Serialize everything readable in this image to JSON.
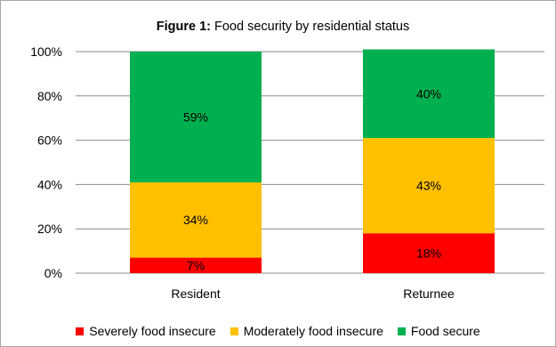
{
  "chart_data": {
    "type": "bar",
    "stacked": true,
    "title_prefix": "Figure 1:",
    "title_rest": " Food security by residential status",
    "categories": [
      "Resident",
      "Returnee"
    ],
    "series": [
      {
        "name": "Severely food insecure",
        "color": "#ff0000",
        "values": [
          7,
          18
        ],
        "labels": [
          "7%",
          "18%"
        ]
      },
      {
        "name": "Moderately food insecure",
        "color": "#ffc000",
        "values": [
          34,
          43
        ],
        "labels": [
          "34%",
          "43%"
        ]
      },
      {
        "name": "Food secure",
        "color": "#00b050",
        "values": [
          59,
          40
        ],
        "labels": [
          "59%",
          "40%"
        ]
      }
    ],
    "ylim": [
      0,
      100
    ],
    "yticks": [
      "0%",
      "20%",
      "40%",
      "60%",
      "80%",
      "100%"
    ],
    "ytick_values": [
      0,
      20,
      40,
      60,
      80,
      100
    ],
    "grid": true,
    "legend_position": "bottom",
    "xlabel": "",
    "ylabel": ""
  }
}
